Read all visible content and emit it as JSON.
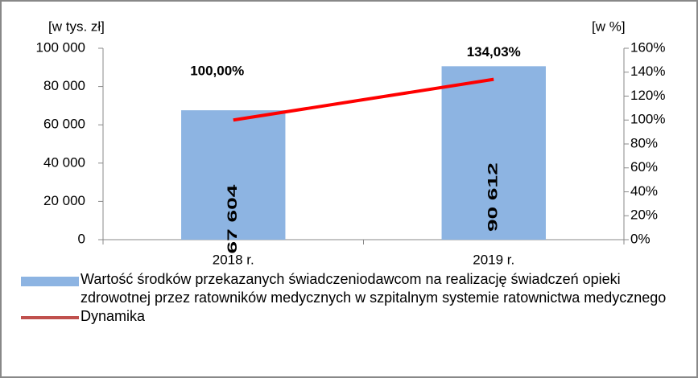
{
  "chart_data": {
    "type": "bar",
    "y_label": "[w tys. zł]",
    "y2_label": "[w %]",
    "categories": [
      "2018 r.",
      "2019 r."
    ],
    "series": [
      {
        "name": "Wartość środków przekazanych świadczeniodawcom  na realizację świadczeń opieki zdrowotnej przez ratowników medycznych w szpitalnym systemie ratownictwa medycznego",
        "type": "bar",
        "color": "#8db4e2",
        "values": [
          67604,
          90612
        ],
        "value_labels": [
          "67 604",
          "90 612"
        ],
        "label_color": "#1a1aa6"
      },
      {
        "name": "Dynamika",
        "type": "line",
        "axis": "y2",
        "color": "#ff0000",
        "legend_color": "#c0504d",
        "values": [
          100,
          134.03
        ],
        "value_labels": [
          "100,00%",
          "134,03%"
        ]
      }
    ],
    "ylim": [
      0,
      100000
    ],
    "yticks": [
      0,
      {
        "value": 20000,
        "label": "20 000"
      },
      {
        "value": 40000,
        "label": "40 000"
      },
      {
        "value": 60000,
        "label": "60 000"
      },
      {
        "value": 80000,
        "label": "80 000"
      },
      {
        "value": 100000,
        "label": "100 000"
      }
    ],
    "y2lim": [
      0,
      160
    ],
    "y2ticks": [
      {
        "value": 0,
        "label": "0%"
      },
      {
        "value": 20,
        "label": "20%"
      },
      {
        "value": 40,
        "label": "40%"
      },
      {
        "value": 60,
        "label": "60%"
      },
      {
        "value": 80,
        "label": "80%"
      },
      {
        "value": 100,
        "label": "100%"
      },
      {
        "value": 120,
        "label": "120%"
      },
      {
        "value": 140,
        "label": "140%"
      },
      {
        "value": 160,
        "label": "160%"
      }
    ]
  }
}
